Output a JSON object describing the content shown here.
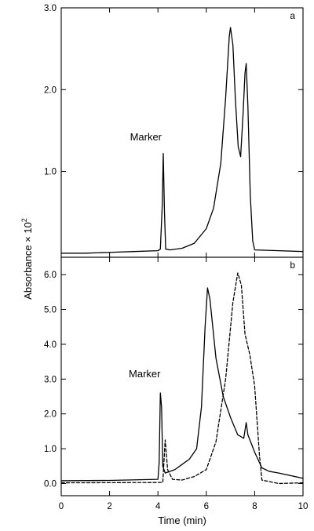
{
  "chart_data": [
    {
      "type": "line",
      "panel_label": "a",
      "xlim": [
        0,
        10
      ],
      "ylim": [
        -0.05,
        3.0
      ],
      "x_ticks": [
        0,
        2,
        4,
        6,
        8,
        10
      ],
      "y_ticks": [
        1.0,
        2.0,
        3.0
      ],
      "y_tick_labels": [
        "1.0",
        "2.0",
        "3.0"
      ],
      "annotations": [
        {
          "text": "Marker",
          "x": 3.5,
          "y": 1.38
        }
      ],
      "series": [
        {
          "line_style": "solid",
          "color": "#000000",
          "points": [
            [
              0.0,
              0.0
            ],
            [
              1.0,
              0.0
            ],
            [
              2.0,
              0.01
            ],
            [
              3.0,
              0.02
            ],
            [
              4.0,
              0.03
            ],
            [
              4.1,
              0.05
            ],
            [
              4.18,
              0.6
            ],
            [
              4.22,
              1.22
            ],
            [
              4.27,
              0.5
            ],
            [
              4.32,
              0.05
            ],
            [
              4.5,
              0.04
            ],
            [
              5.0,
              0.06
            ],
            [
              5.5,
              0.12
            ],
            [
              6.0,
              0.3
            ],
            [
              6.3,
              0.55
            ],
            [
              6.6,
              1.1
            ],
            [
              6.8,
              1.9
            ],
            [
              6.95,
              2.65
            ],
            [
              7.0,
              2.76
            ],
            [
              7.1,
              2.55
            ],
            [
              7.2,
              1.9
            ],
            [
              7.32,
              1.3
            ],
            [
              7.42,
              1.18
            ],
            [
              7.52,
              1.7
            ],
            [
              7.6,
              2.2
            ],
            [
              7.65,
              2.32
            ],
            [
              7.72,
              1.8
            ],
            [
              7.82,
              0.7
            ],
            [
              7.92,
              0.15
            ],
            [
              8.0,
              0.04
            ],
            [
              9.0,
              0.03
            ],
            [
              10.0,
              0.02
            ]
          ]
        }
      ]
    },
    {
      "type": "line",
      "panel_label": "b",
      "xlabel": "Time (min)",
      "xlim": [
        0,
        10
      ],
      "ylim": [
        -0.35,
        6.5
      ],
      "x_ticks": [
        0,
        2,
        4,
        6,
        8,
        10
      ],
      "x_tick_labels": [
        "0",
        "2",
        "4",
        "6",
        "8",
        "10"
      ],
      "y_ticks": [
        0.0,
        1.0,
        2.0,
        3.0,
        4.0,
        5.0,
        6.0
      ],
      "y_tick_labels": [
        "0.0",
        "1.0",
        "2.0",
        "3.0",
        "4.0",
        "5.0",
        "6.0"
      ],
      "annotations": [
        {
          "text": "Marker",
          "x": 3.45,
          "y": 3.05
        }
      ],
      "series": [
        {
          "line_style": "solid",
          "color": "#000000",
          "points": [
            [
              0.0,
              0.08
            ],
            [
              2.0,
              0.09
            ],
            [
              4.0,
              0.12
            ],
            [
              4.05,
              0.6
            ],
            [
              4.1,
              2.6
            ],
            [
              4.15,
              2.2
            ],
            [
              4.2,
              0.5
            ],
            [
              4.3,
              0.3
            ],
            [
              4.7,
              0.4
            ],
            [
              5.0,
              0.55
            ],
            [
              5.3,
              0.7
            ],
            [
              5.6,
              1.0
            ],
            [
              5.8,
              2.2
            ],
            [
              5.95,
              4.5
            ],
            [
              6.05,
              5.62
            ],
            [
              6.15,
              5.3
            ],
            [
              6.4,
              3.6
            ],
            [
              6.7,
              2.5
            ],
            [
              7.0,
              1.9
            ],
            [
              7.3,
              1.4
            ],
            [
              7.55,
              1.3
            ],
            [
              7.65,
              1.75
            ],
            [
              7.72,
              1.4
            ],
            [
              8.0,
              0.9
            ],
            [
              8.3,
              0.45
            ],
            [
              8.6,
              0.35
            ],
            [
              9.0,
              0.3
            ],
            [
              10.0,
              0.15
            ]
          ]
        },
        {
          "line_style": "dashed",
          "color": "#000000",
          "points": [
            [
              0.0,
              0.02
            ],
            [
              4.2,
              0.03
            ],
            [
              4.3,
              1.25
            ],
            [
              4.4,
              0.4
            ],
            [
              4.6,
              0.12
            ],
            [
              5.0,
              0.1
            ],
            [
              5.5,
              0.2
            ],
            [
              6.0,
              0.4
            ],
            [
              6.4,
              1.2
            ],
            [
              6.8,
              3.0
            ],
            [
              7.1,
              5.2
            ],
            [
              7.3,
              6.05
            ],
            [
              7.45,
              5.7
            ],
            [
              7.6,
              4.3
            ],
            [
              7.8,
              3.7
            ],
            [
              8.0,
              2.8
            ],
            [
              8.2,
              0.8
            ],
            [
              8.3,
              0.1
            ],
            [
              9.0,
              0.0
            ],
            [
              10.0,
              0.02
            ]
          ]
        }
      ]
    }
  ],
  "shared": {
    "ylabel_main": "Absorbance × 10",
    "ylabel_exponent": "2"
  }
}
